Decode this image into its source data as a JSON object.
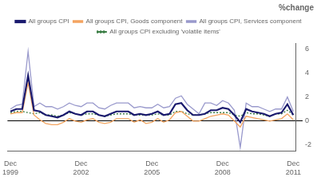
{
  "chart_data": {
    "type": "line",
    "title": "%change",
    "categories": [
      "Dec\n1999",
      null,
      null,
      null,
      null,
      null,
      null,
      null,
      null,
      null,
      null,
      null,
      "Dec\n2002",
      null,
      null,
      null,
      null,
      null,
      null,
      null,
      null,
      null,
      null,
      null,
      "Dec\n2005",
      null,
      null,
      null,
      null,
      null,
      null,
      null,
      null,
      null,
      null,
      null,
      "Dec\n2008",
      null,
      null,
      null,
      null,
      null,
      null,
      null,
      null,
      null,
      null,
      null,
      "Dec\n2011"
    ],
    "series": [
      {
        "name": "All groups CPI",
        "color": "#1a1a6e",
        "line_style": "solid",
        "values": [
          0.8,
          1.0,
          1.0,
          3.8,
          0.9,
          0.8,
          0.5,
          0.4,
          0.3,
          0.5,
          0.8,
          0.6,
          0.5,
          0.8,
          0.8,
          0.5,
          0.4,
          0.6,
          0.8,
          0.8,
          0.8,
          0.5,
          0.6,
          0.5,
          0.6,
          0.8,
          0.5,
          0.6,
          1.4,
          1.5,
          0.9,
          0.5,
          0.5,
          0.6,
          0.9,
          0.9,
          1.1,
          1.0,
          0.5,
          -0.1,
          1.0,
          0.8,
          0.7,
          0.6,
          0.4,
          0.6,
          0.7,
          1.4,
          0.5
        ]
      },
      {
        "name": "All groups CPI, Goods component",
        "color": "#f4a460",
        "line_style": "solid",
        "values": [
          0.6,
          0.7,
          0.7,
          3.2,
          0.5,
          0.1,
          -0.2,
          -0.3,
          -0.3,
          -0.1,
          0.2,
          0.0,
          -0.1,
          0.1,
          0.2,
          -0.1,
          -0.2,
          -0.1,
          0.2,
          0.2,
          0.2,
          -0.1,
          0.1,
          -0.2,
          -0.1,
          0.2,
          -0.1,
          0.1,
          0.7,
          0.8,
          0.4,
          0.0,
          0.0,
          0.2,
          0.4,
          0.5,
          0.6,
          0.5,
          0.0,
          -0.5,
          0.4,
          0.3,
          0.2,
          0.1,
          0.0,
          0.1,
          0.2,
          0.6,
          0.1
        ]
      },
      {
        "name": "All groups CPI, Services component",
        "color": "#9999cc",
        "line_style": "solid",
        "values": [
          1.0,
          1.3,
          1.4,
          5.8,
          1.2,
          1.5,
          1.2,
          1.2,
          1.0,
          1.2,
          1.5,
          1.3,
          1.2,
          1.5,
          1.5,
          1.1,
          1.0,
          1.3,
          1.5,
          1.5,
          1.5,
          1.1,
          1.2,
          1.1,
          1.1,
          1.4,
          1.1,
          1.2,
          1.9,
          2.1,
          1.4,
          1.0,
          0.6,
          1.5,
          1.5,
          1.3,
          1.7,
          1.5,
          0.9,
          -2.2,
          1.5,
          1.2,
          1.2,
          1.0,
          0.8,
          1.0,
          1.0,
          2.0,
          0.8
        ]
      },
      {
        "name": "All groups CPI excluding 'volatile items'",
        "color": "#3a7d44",
        "line_style": "dotted",
        "values": [
          0.7,
          0.8,
          0.8,
          0.7,
          0.6,
          0.7,
          0.5,
          0.5,
          0.4,
          0.5,
          0.7,
          0.6,
          0.5,
          0.6,
          0.6,
          0.5,
          0.4,
          0.5,
          0.6,
          0.6,
          0.6,
          0.5,
          0.5,
          0.5,
          0.5,
          0.6,
          0.5,
          0.5,
          0.8,
          0.8,
          0.6,
          0.5,
          0.5,
          0.6,
          0.7,
          0.7,
          0.7,
          0.7,
          0.5,
          0.4,
          0.7,
          0.6,
          0.6,
          0.5,
          0.4,
          0.6,
          0.6,
          0.9,
          0.5
        ]
      }
    ],
    "ylim": [
      -2.5,
      6.5
    ],
    "yticks": [
      -2,
      0,
      2,
      4,
      6
    ],
    "grid": false,
    "legend": "top",
    "marker": "none"
  }
}
